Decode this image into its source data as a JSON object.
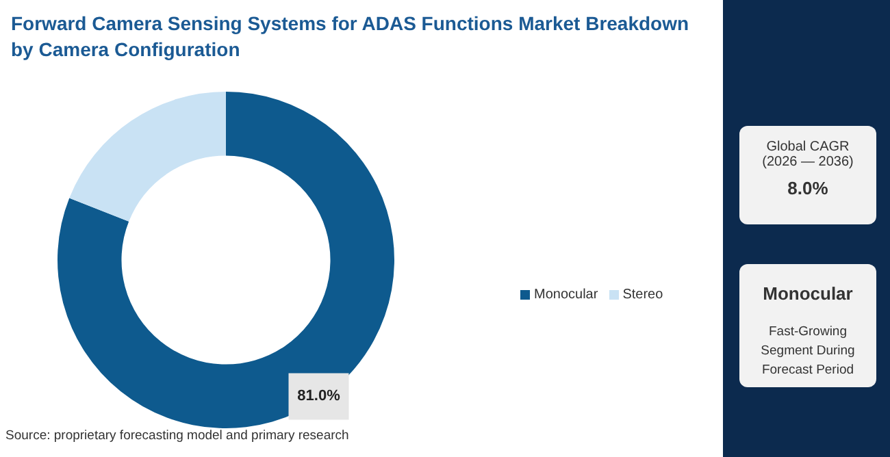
{
  "chart_data": {
    "type": "donut",
    "title": "Forward Camera Sensing Systems for ADAS Functions Market Breakdown by Camera Configuration",
    "categories": [
      "Monocular",
      "Stereo"
    ],
    "values": [
      81.0,
      19.0
    ],
    "colors": [
      "#0e5a8e",
      "#c9e2f4"
    ],
    "value_labels": [
      "81.0%",
      null
    ],
    "legend": "right",
    "annotations": [
      "Source: proprietary forecasting model and primary research",
      "Global CAGR",
      "(2026 — 2036)",
      "8.0%",
      "Monocular",
      "Fast-Growing Segment During Forecast Period"
    ]
  }
}
